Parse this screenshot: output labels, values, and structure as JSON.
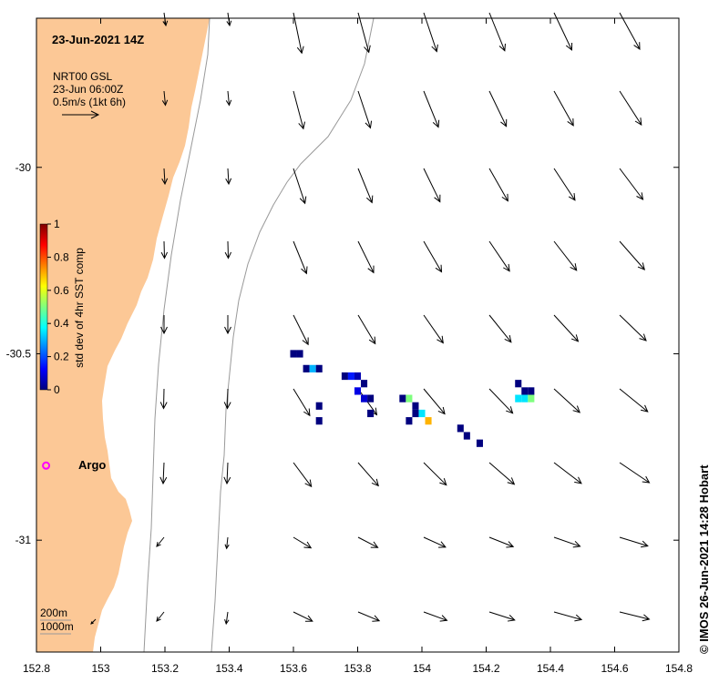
{
  "map": {
    "timestamp_title": "23-Jun-2021 14Z",
    "current_source": "NRT00 GSL",
    "current_time": "23-Jun 06:00Z",
    "current_scale": "0.5m/s (1kt 6h)",
    "colorbar_label": "std dev of 4hr SST comp",
    "colorbar_ticks": [
      "0",
      "0.2",
      "0.4",
      "0.6",
      "0.8",
      "1"
    ],
    "argo_label": "Argo",
    "contour_label_200": "200m",
    "contour_label_1000": "1000m",
    "credit": "© IMOS 26-Jun-2021 14:28 Hobart",
    "colors": {
      "land": "#fcc896",
      "argo": "#ff00ff",
      "contour": "#999999"
    }
  },
  "chart_data": {
    "type": "heatmap",
    "x_ticks": [
      "152.8",
      "153",
      "153.2",
      "153.4",
      "153.6",
      "153.8",
      "154",
      "154.2",
      "154.4",
      "154.6",
      "154.8"
    ],
    "y_ticks": [
      "-30",
      "-30.5",
      "-31"
    ],
    "xlim": [
      152.8,
      154.8
    ],
    "ylim": [
      -31.3,
      -29.6
    ],
    "argo_float": {
      "lon": 152.83,
      "lat": -30.8
    },
    "sst_std_cells": [
      {
        "lon": 153.6,
        "lat": -30.5,
        "v": 0.0
      },
      {
        "lon": 153.62,
        "lat": -30.5,
        "v": 0.0
      },
      {
        "lon": 153.64,
        "lat": -30.54,
        "v": 0.0
      },
      {
        "lon": 153.66,
        "lat": -30.54,
        "v": 0.3
      },
      {
        "lon": 153.68,
        "lat": -30.54,
        "v": 0.0
      },
      {
        "lon": 153.68,
        "lat": -30.64,
        "v": 0.0
      },
      {
        "lon": 153.68,
        "lat": -30.68,
        "v": 0.0
      },
      {
        "lon": 153.76,
        "lat": -30.56,
        "v": 0.0
      },
      {
        "lon": 153.78,
        "lat": -30.56,
        "v": 0.15
      },
      {
        "lon": 153.8,
        "lat": -30.56,
        "v": 0.05
      },
      {
        "lon": 153.82,
        "lat": -30.58,
        "v": 0.0
      },
      {
        "lon": 153.84,
        "lat": -30.62,
        "v": 0.0
      },
      {
        "lon": 153.8,
        "lat": -30.6,
        "v": 0.1
      },
      {
        "lon": 153.82,
        "lat": -30.62,
        "v": 0.08
      },
      {
        "lon": 153.84,
        "lat": -30.66,
        "v": 0.0
      },
      {
        "lon": 153.94,
        "lat": -30.62,
        "v": 0.0
      },
      {
        "lon": 153.96,
        "lat": -30.62,
        "v": 0.5
      },
      {
        "lon": 153.98,
        "lat": -30.64,
        "v": 0.0
      },
      {
        "lon": 153.98,
        "lat": -30.66,
        "v": 0.0
      },
      {
        "lon": 154.0,
        "lat": -30.66,
        "v": 0.35
      },
      {
        "lon": 154.02,
        "lat": -30.68,
        "v": 0.7
      },
      {
        "lon": 153.96,
        "lat": -30.68,
        "v": 0.0
      },
      {
        "lon": 154.12,
        "lat": -30.7,
        "v": 0.0
      },
      {
        "lon": 154.14,
        "lat": -30.72,
        "v": 0.0
      },
      {
        "lon": 154.18,
        "lat": -30.74,
        "v": 0.0
      },
      {
        "lon": 154.3,
        "lat": -30.58,
        "v": 0.0
      },
      {
        "lon": 154.32,
        "lat": -30.6,
        "v": 0.0
      },
      {
        "lon": 154.34,
        "lat": -30.6,
        "v": 0.0
      },
      {
        "lon": 154.3,
        "lat": -30.62,
        "v": 0.35
      },
      {
        "lon": 154.32,
        "lat": -30.62,
        "v": 0.35
      },
      {
        "lon": 154.34,
        "lat": -30.62,
        "v": 0.5
      }
    ]
  }
}
